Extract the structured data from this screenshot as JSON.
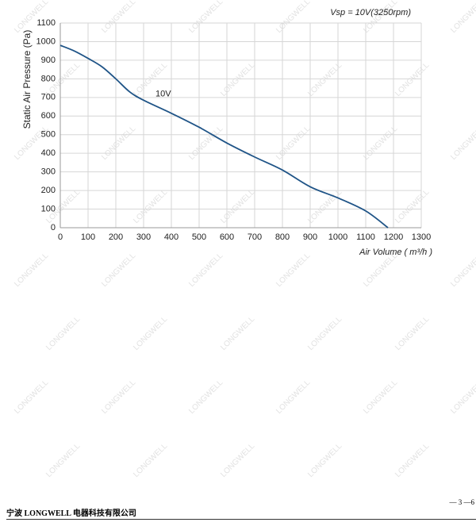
{
  "chart_data": {
    "type": "line",
    "annotation": "Vsp = 10V(3250rpm)",
    "x_label": "Air Volume ( m³/h )",
    "y_label": "Static Air Pressure  (Pa)",
    "x": [
      0,
      50,
      100,
      150,
      200,
      250,
      300,
      400,
      500,
      600,
      700,
      800,
      900,
      1000,
      1100,
      1180
    ],
    "series": [
      {
        "name": "10V",
        "color": "#1f5487",
        "values": [
          980,
          950,
          910,
          865,
          800,
          730,
          685,
          615,
          540,
          455,
          380,
          310,
          220,
          160,
          90,
          0
        ]
      }
    ],
    "xlim": [
      0,
      1300
    ],
    "xticks": [
      0,
      100,
      200,
      300,
      400,
      500,
      600,
      700,
      800,
      900,
      1000,
      1100,
      1200,
      1300
    ],
    "ylim": [
      0,
      1100
    ],
    "yticks": [
      0,
      100,
      200,
      300,
      400,
      500,
      600,
      700,
      800,
      900,
      1000,
      1100
    ],
    "grid": true
  },
  "watermark": "LONGWELL",
  "footer": {
    "company": "宁波 LONGWELL 电器科技有限公司",
    "page": "— 3 —6"
  }
}
